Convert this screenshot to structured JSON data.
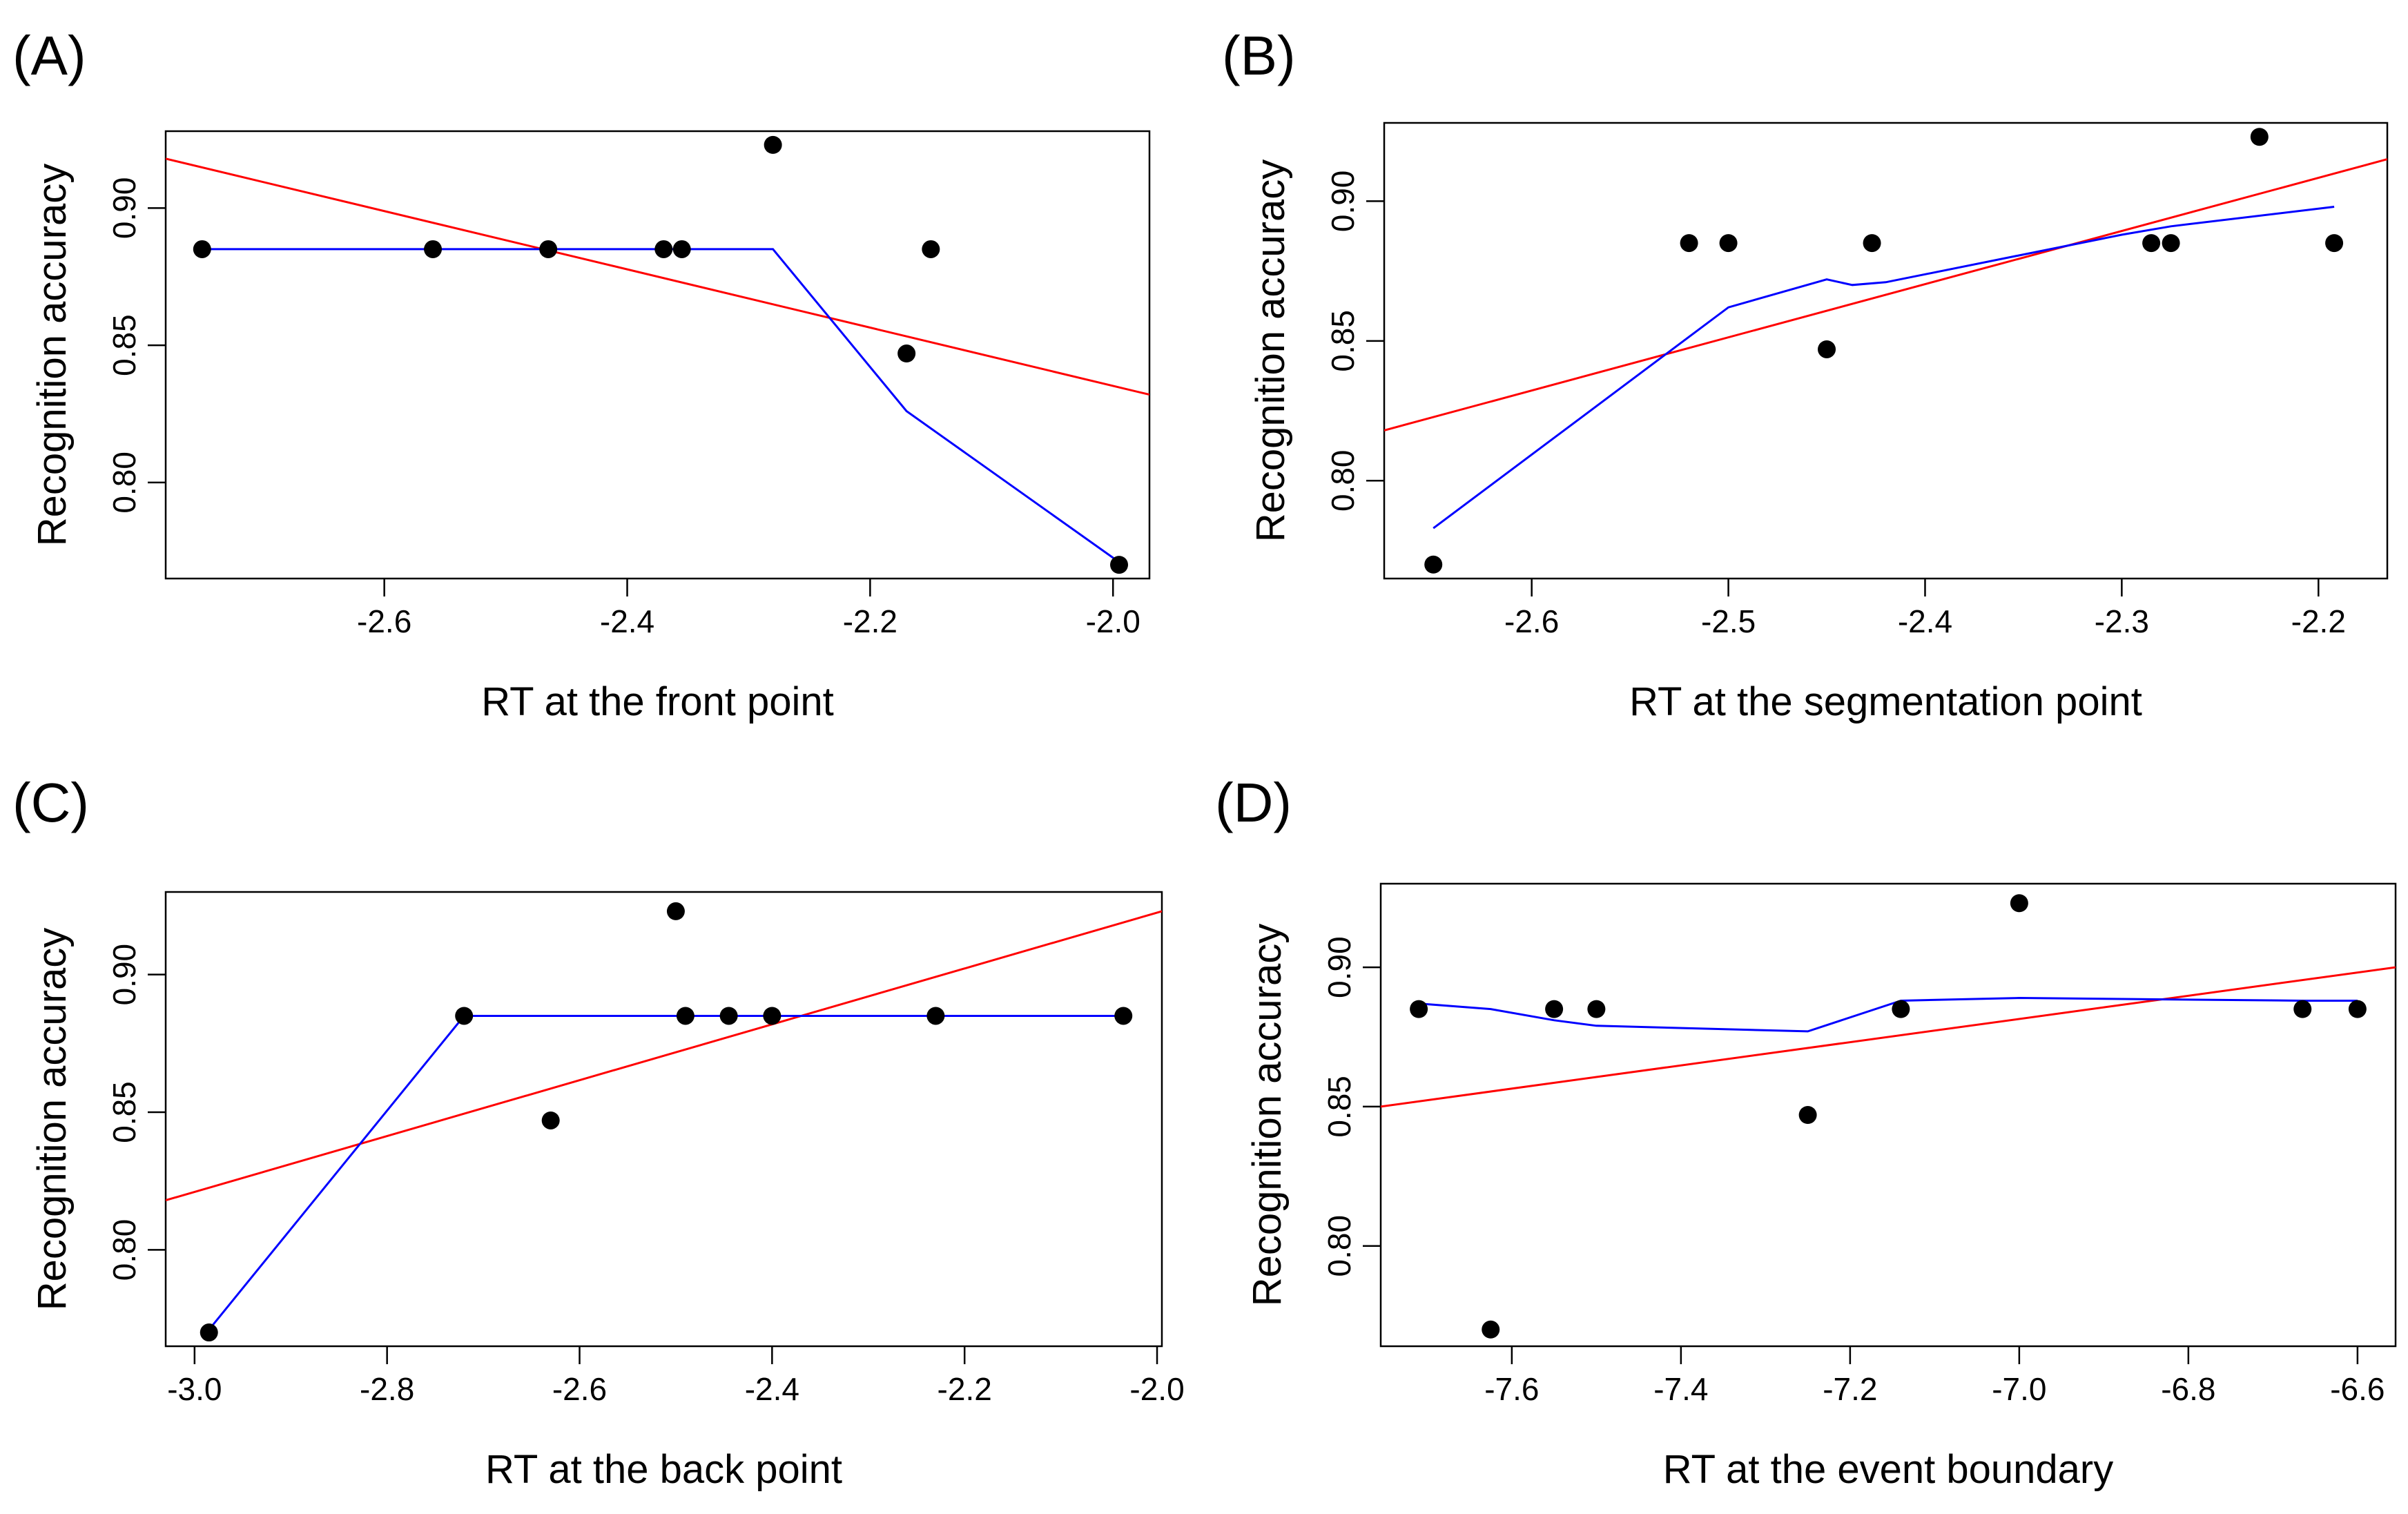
{
  "chart_data": [
    {
      "type": "scatter",
      "panel_label": "(A)",
      "xlabel": "RT at the front point",
      "ylabel": "Recognition accuracy",
      "xlim": [
        -2.78,
        -1.97
      ],
      "ylim": [
        0.765,
        0.928
      ],
      "xticks": [
        -2.6,
        -2.4,
        -2.2,
        -2.0
      ],
      "xtick_labels": [
        "-2.6",
        "-2.4",
        "-2.2",
        "-2.0"
      ],
      "yticks": [
        0.8,
        0.85,
        0.9
      ],
      "ytick_labels": [
        "0.80",
        "0.85",
        "0.90"
      ],
      "grid": false,
      "points": {
        "x": [
          -2.75,
          -2.56,
          -2.465,
          -2.37,
          -2.355,
          -2.28,
          -2.17,
          -2.15,
          -1.995
        ],
        "y": [
          0.885,
          0.885,
          0.885,
          0.885,
          0.885,
          0.923,
          0.847,
          0.885,
          0.77
        ]
      },
      "lines": [
        {
          "kind": "linear-fit",
          "color": "#ff0000",
          "x": [
            -2.78,
            -1.97
          ],
          "y": [
            0.918,
            0.832
          ]
        },
        {
          "kind": "smooth-fit",
          "color": "#0000ff",
          "x": [
            -2.75,
            -2.56,
            -2.465,
            -2.37,
            -2.355,
            -2.28,
            -2.17,
            -1.995
          ],
          "y": [
            0.885,
            0.885,
            0.885,
            0.885,
            0.885,
            0.885,
            0.826,
            0.771
          ]
        }
      ]
    },
    {
      "type": "scatter",
      "panel_label": "(B)",
      "xlabel": "RT at the segmentation point",
      "ylabel": "Recognition accuracy",
      "xlim": [
        -2.675,
        -2.165
      ],
      "ylim": [
        0.765,
        0.928
      ],
      "xticks": [
        -2.6,
        -2.5,
        -2.4,
        -2.3,
        -2.2
      ],
      "xtick_labels": [
        "-2.6",
        "-2.5",
        "-2.4",
        "-2.3",
        "-2.2"
      ],
      "yticks": [
        0.8,
        0.85,
        0.9
      ],
      "ytick_labels": [
        "0.80",
        "0.85",
        "0.90"
      ],
      "grid": false,
      "points": {
        "x": [
          -2.65,
          -2.52,
          -2.5,
          -2.45,
          -2.427,
          -2.285,
          -2.275,
          -2.23,
          -2.192
        ],
        "y": [
          0.77,
          0.885,
          0.885,
          0.847,
          0.885,
          0.885,
          0.885,
          0.923,
          0.885
        ]
      },
      "lines": [
        {
          "kind": "linear-fit",
          "color": "#ff0000",
          "x": [
            -2.675,
            -2.165
          ],
          "y": [
            0.818,
            0.915
          ]
        },
        {
          "kind": "smooth-fit",
          "color": "#0000ff",
          "x": [
            -2.65,
            -2.5,
            -2.45,
            -2.437,
            -2.42,
            -2.3,
            -2.275,
            -2.192
          ],
          "y": [
            0.783,
            0.862,
            0.872,
            0.87,
            0.871,
            0.888,
            0.891,
            0.898
          ]
        }
      ]
    },
    {
      "type": "scatter",
      "panel_label": "(C)",
      "xlabel": "RT at the back point",
      "ylabel": "Recognition accuracy",
      "xlim": [
        -3.03,
        -1.995
      ],
      "ylim": [
        0.765,
        0.93
      ],
      "xticks": [
        -3.0,
        -2.8,
        -2.6,
        -2.4,
        -2.2,
        -2.0
      ],
      "xtick_labels": [
        "-3.0",
        "-2.8",
        "-2.6",
        "-2.4",
        "-2.2",
        "-2.0"
      ],
      "yticks": [
        0.8,
        0.85,
        0.9
      ],
      "ytick_labels": [
        "0.80",
        "0.85",
        "0.90"
      ],
      "grid": false,
      "points": {
        "x": [
          -2.985,
          -2.72,
          -2.63,
          -2.5,
          -2.49,
          -2.445,
          -2.4,
          -2.23,
          -2.035
        ],
        "y": [
          0.77,
          0.885,
          0.847,
          0.923,
          0.885,
          0.885,
          0.885,
          0.885,
          0.885
        ]
      },
      "lines": [
        {
          "kind": "linear-fit",
          "color": "#ff0000",
          "x": [
            -3.03,
            -1.995
          ],
          "y": [
            0.818,
            0.923
          ]
        },
        {
          "kind": "smooth-fit",
          "color": "#0000ff",
          "x": [
            -2.985,
            -2.72,
            -2.49,
            -2.4,
            -2.23,
            -2.035
          ],
          "y": [
            0.771,
            0.885,
            0.885,
            0.885,
            0.885,
            0.885
          ]
        }
      ]
    },
    {
      "type": "scatter",
      "panel_label": "(D)",
      "xlabel": "RT at the event boundary",
      "ylabel": "Recognition accuracy",
      "xlim": [
        -7.755,
        -6.555
      ],
      "ylim": [
        0.764,
        0.93
      ],
      "xticks": [
        -7.6,
        -7.4,
        -7.2,
        -7.0,
        -6.8,
        -6.6
      ],
      "xtick_labels": [
        "-7.6",
        "-7.4",
        "-7.2",
        "-7.0",
        "-6.8",
        "-6.6"
      ],
      "yticks": [
        0.8,
        0.85,
        0.9
      ],
      "ytick_labels": [
        "0.80",
        "0.85",
        "0.90"
      ],
      "grid": false,
      "points": {
        "x": [
          -7.71,
          -7.625,
          -7.55,
          -7.5,
          -7.25,
          -7.14,
          -7.0,
          -6.665,
          -6.6
        ],
        "y": [
          0.885,
          0.77,
          0.885,
          0.885,
          0.847,
          0.885,
          0.923,
          0.885,
          0.885
        ]
      },
      "lines": [
        {
          "kind": "linear-fit",
          "color": "#ff0000",
          "x": [
            -7.755,
            -6.555
          ],
          "y": [
            0.85,
            0.9
          ]
        },
        {
          "kind": "smooth-fit",
          "color": "#0000ff",
          "x": [
            -7.71,
            -7.625,
            -7.55,
            -7.5,
            -7.25,
            -7.14,
            -7.0,
            -6.665,
            -6.6
          ],
          "y": [
            0.887,
            0.885,
            0.881,
            0.879,
            0.877,
            0.888,
            0.889,
            0.888,
            0.888
          ]
        }
      ]
    }
  ]
}
